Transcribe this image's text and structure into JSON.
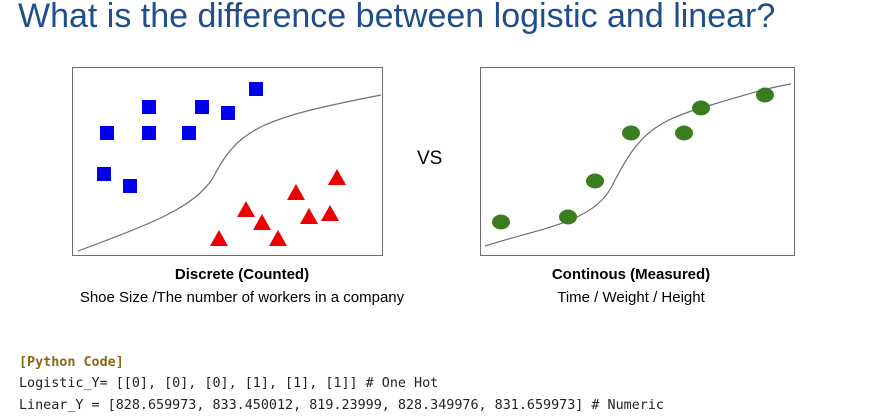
{
  "title": "What is the difference between logistic and linear?",
  "vs_label": "VS",
  "left_panel": {
    "caption_title": "Discrete (Counted)",
    "caption_sub": "Shoe Size /The number of workers in a company",
    "colors": {
      "square": "#0000ee",
      "triangle": "#ee0000",
      "curve": "#707070"
    }
  },
  "right_panel": {
    "caption_title": "Continous (Measured)",
    "caption_sub": "Time / Weight / Height",
    "colors": {
      "point": "#3a7d1e",
      "curve": "#707070"
    }
  },
  "code": {
    "header": "[Python Code]",
    "line1": "Logistic_Y= [[0], [0], [0], [1], [1], [1]] # One Hot",
    "line2": "Linear_Y = [828.659973, 833.450012, 819.23999, 828.349976, 831.659973] # Numeric"
  }
}
